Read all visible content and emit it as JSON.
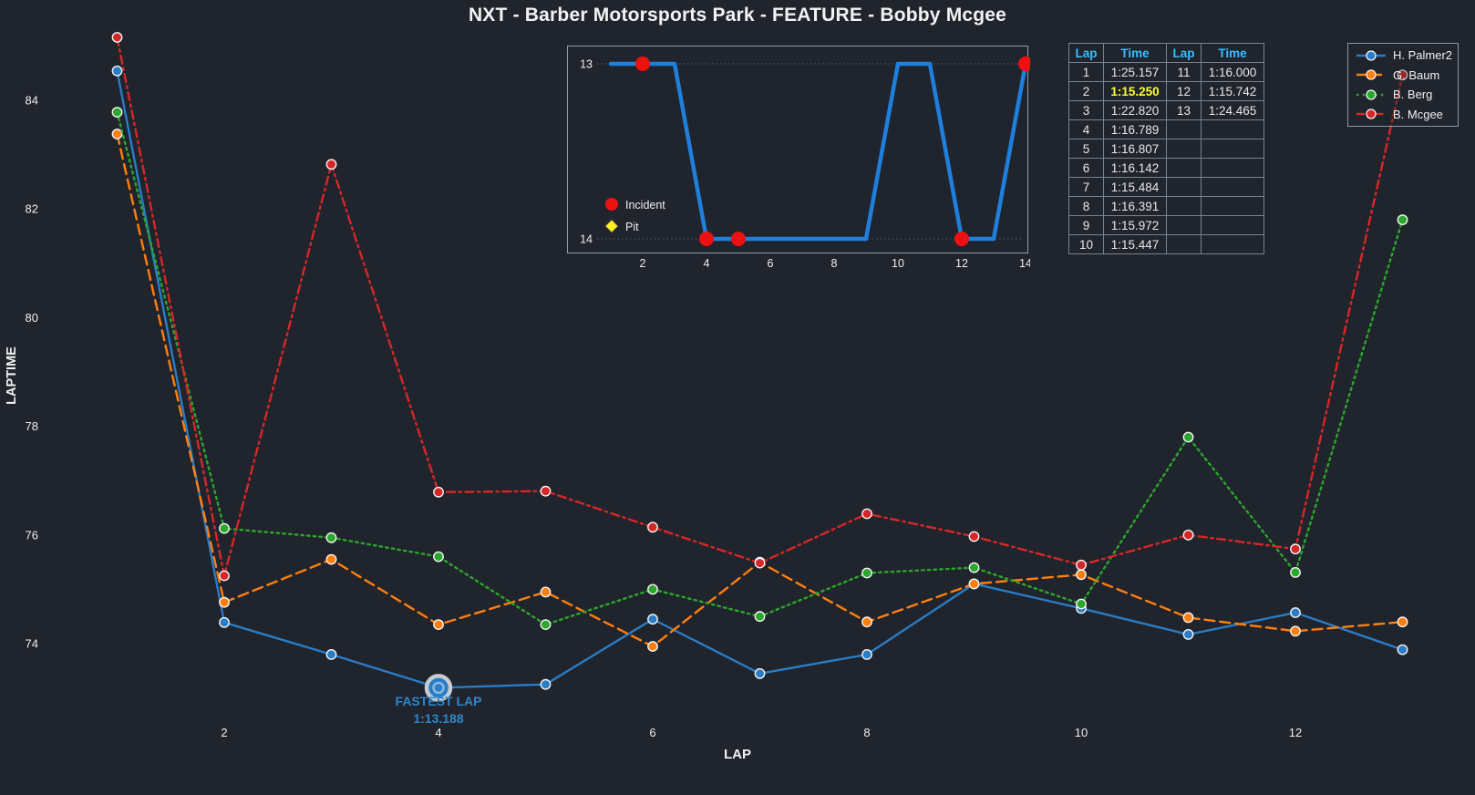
{
  "title": "NXT - Barber Motorsports Park - FEATURE - Bobby Mcgee",
  "colors": {
    "background": "#20242d",
    "blue": "#2a7cc4",
    "orange": "#ff7f0e",
    "green": "#2ca62c",
    "red": "#d62728",
    "incident_red": "#ee1111",
    "pit_yellow": "#ffee22",
    "table_header": "#36bdff",
    "fastest_yellow": "#ffff2a",
    "annotation_blue": "#2e86c9",
    "inset_line_blue": "#1e7fdc"
  },
  "chart_data": [
    {
      "type": "line",
      "title": "NXT - Barber Motorsports Park - FEATURE - Bobby Mcgee",
      "xlabel": "LAP",
      "ylabel": "LAPTIME",
      "x": [
        1,
        2,
        3,
        4,
        5,
        6,
        7,
        8,
        9,
        10,
        11,
        12,
        13
      ],
      "xticks": [
        2,
        4,
        6,
        8,
        10,
        12
      ],
      "yticks": [
        74,
        76,
        78,
        80,
        82,
        84
      ],
      "ylim": [
        72.6,
        85.3
      ],
      "grid": false,
      "legend_position": "upper right",
      "series": [
        {
          "name": "H. Palmer2",
          "style": "solid",
          "color": "#2a7cc4",
          "values": [
            84.54,
            74.39,
            73.8,
            73.188,
            73.25,
            74.45,
            73.45,
            73.8,
            75.1,
            74.65,
            74.17,
            74.57,
            73.89
          ]
        },
        {
          "name": "G. Baum",
          "style": "dashed",
          "color": "#ff7f0e",
          "values": [
            83.38,
            74.76,
            75.55,
            74.35,
            74.95,
            73.95,
            75.5,
            74.4,
            75.1,
            75.27,
            74.48,
            74.23,
            74.4
          ]
        },
        {
          "name": "B. Berg",
          "style": "dotted",
          "color": "#2ca62c",
          "values": [
            83.78,
            76.12,
            75.95,
            75.6,
            74.35,
            75.0,
            74.5,
            75.3,
            75.4,
            74.73,
            77.8,
            75.31,
            81.8
          ]
        },
        {
          "name": "B. Mcgee",
          "style": "dashdot",
          "color": "#d62728",
          "values": [
            85.157,
            75.25,
            82.82,
            76.789,
            76.807,
            76.142,
            75.484,
            76.391,
            75.972,
            75.447,
            76.0,
            75.742,
            84.465
          ]
        }
      ],
      "annotation": {
        "line1": "FASTEST LAP",
        "line2": "1:13.188",
        "lap": 4,
        "value_sec": 73.188,
        "series": "H. Palmer2"
      }
    },
    {
      "type": "line",
      "name": "position-inset",
      "x": [
        1,
        2,
        3,
        4,
        5,
        6,
        7,
        8,
        9,
        10,
        11,
        12,
        13,
        14
      ],
      "values": [
        13,
        13,
        13,
        14,
        14,
        14,
        14,
        14,
        14,
        13,
        13,
        14,
        14,
        13
      ],
      "yticks": [
        13,
        14
      ],
      "xticks": [
        2,
        4,
        6,
        8,
        10,
        12,
        14
      ],
      "y_inverted": true,
      "grid": "horizontal-dotted",
      "incident_laps": [
        2,
        4,
        5,
        12,
        14
      ],
      "pit_laps": [],
      "legend": [
        {
          "label": "Incident",
          "marker": "circle",
          "color": "#ee1111"
        },
        {
          "label": "Pit",
          "marker": "diamond",
          "color": "#ffee22"
        }
      ]
    }
  ],
  "lap_table": {
    "headers": [
      "Lap",
      "Time",
      "Lap",
      "Time"
    ],
    "rows": [
      [
        "1",
        "1:25.157",
        "11",
        "1:16.000"
      ],
      [
        "2",
        "1:15.250",
        "12",
        "1:15.742"
      ],
      [
        "3",
        "1:22.820",
        "13",
        "1:24.465"
      ],
      [
        "4",
        "1:16.789",
        "",
        ""
      ],
      [
        "5",
        "1:16.807",
        "",
        ""
      ],
      [
        "6",
        "1:16.142",
        "",
        ""
      ],
      [
        "7",
        "1:15.484",
        "",
        ""
      ],
      [
        "8",
        "1:16.391",
        "",
        ""
      ],
      [
        "9",
        "1:15.972",
        "",
        ""
      ],
      [
        "10",
        "1:15.447",
        "",
        ""
      ]
    ],
    "highlight": {
      "row": 1,
      "col": 1,
      "reason": "fastest lap of B. Mcgee"
    }
  },
  "legend": {
    "entries": [
      {
        "label": "H. Palmer2",
        "color": "#2a7cc4",
        "style": "solid"
      },
      {
        "label": "G. Baum",
        "color": "#ff7f0e",
        "style": "dashed"
      },
      {
        "label": "B. Berg",
        "color": "#2ca62c",
        "style": "dotted"
      },
      {
        "label": "B. Mcgee",
        "color": "#d62728",
        "style": "dashdot"
      }
    ]
  }
}
